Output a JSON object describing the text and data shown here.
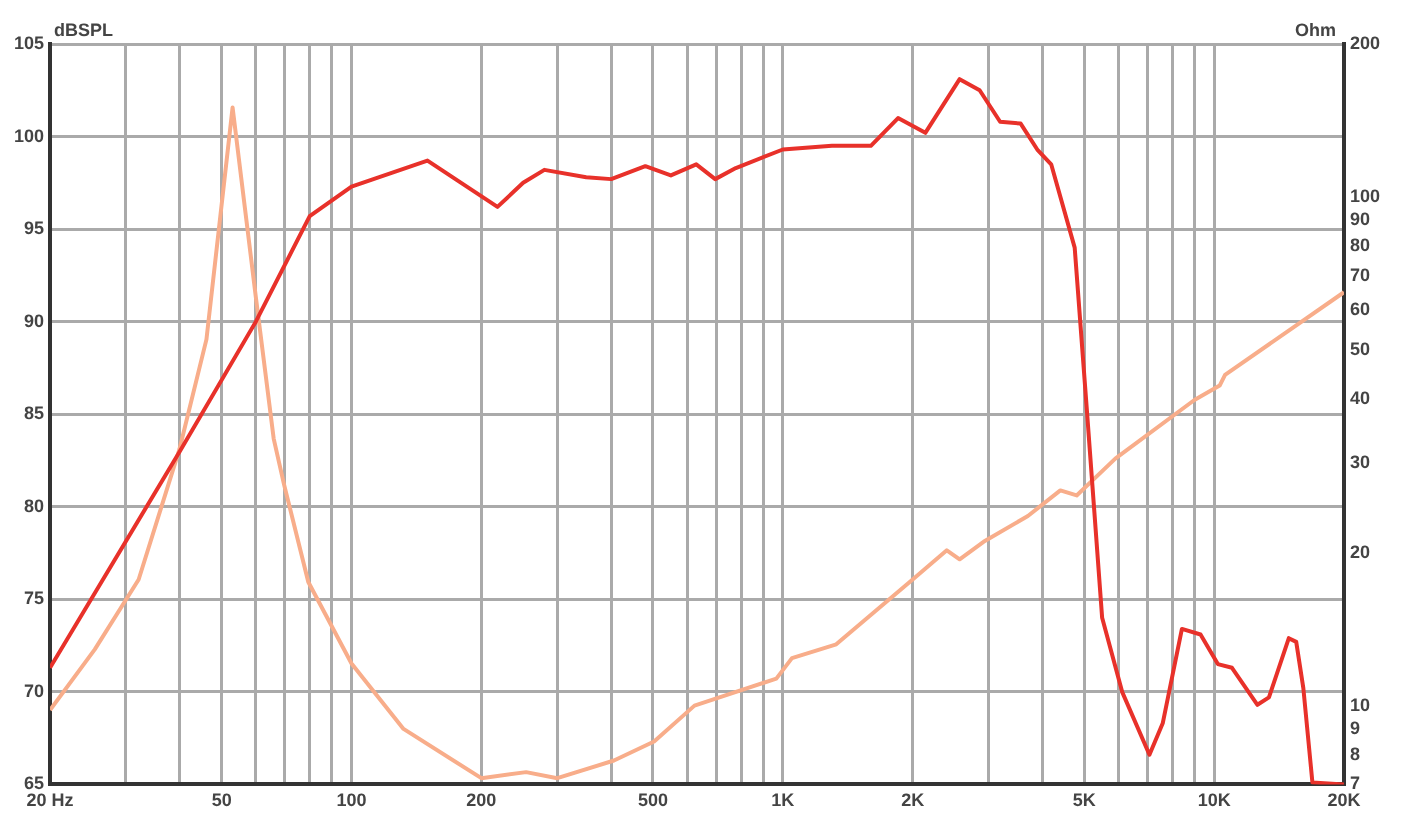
{
  "chart_data": {
    "type": "line",
    "ylabel": "Ohm",
    "y2label": "dBSPL",
    "log": "xy",
    "grid": true,
    "marker": "none",
    "line_style": "solid",
    "xlim": [
      20,
      20000
    ],
    "xticks": [
      {
        "value": 20,
        "label": "20 Hz"
      },
      {
        "value": 30,
        "label": null
      },
      {
        "value": 40,
        "label": null
      },
      50,
      {
        "value": 60,
        "label": null
      },
      {
        "value": 70,
        "label": null
      },
      {
        "value": 80,
        "label": null
      },
      {
        "value": 90,
        "label": null
      },
      100,
      200,
      {
        "value": 300,
        "label": null
      },
      {
        "value": 400,
        "label": null
      },
      500,
      {
        "value": 600,
        "label": null
      },
      {
        "value": 700,
        "label": null
      },
      {
        "value": 800,
        "label": null
      },
      {
        "value": 900,
        "label": null
      },
      {
        "value": 1000,
        "label": "1K"
      },
      {
        "value": 2000,
        "label": "2K"
      },
      {
        "value": 3000,
        "label": null
      },
      {
        "value": 4000,
        "label": null
      },
      {
        "value": 5000,
        "label": "5K"
      },
      {
        "value": 6000,
        "label": null
      },
      {
        "value": 7000,
        "label": null
      },
      {
        "value": 8000,
        "label": null
      },
      {
        "value": 9000,
        "label": null
      },
      {
        "value": 10000,
        "label": "10K"
      },
      {
        "value": 20000,
        "label": "20K"
      }
    ],
    "ylim": [
      7,
      200
    ],
    "yticks": [
      7,
      8,
      9,
      10,
      20,
      30,
      40,
      50,
      60,
      70,
      80,
      90,
      100,
      200
    ],
    "y2lim": [
      65,
      105
    ],
    "y2ticks": [
      65,
      70,
      75,
      80,
      85,
      90,
      95,
      100,
      105
    ],
    "series": [
      {
        "color": "#e8312a",
        "axis": "y2",
        "x": [
          20,
          40,
          60,
          80,
          100,
          150,
          218,
          250,
          280,
          350,
          400,
          480,
          550,
          630,
          697,
          778,
          1000,
          1300,
          1600,
          1850,
          2140,
          2570,
          2860,
          3190,
          3560,
          3890,
          4190,
          4750,
          5070,
          5500,
          6120,
          7080,
          7600,
          8420,
          9300,
          10200,
          11000,
          12600,
          13400,
          14900,
          15500,
          16100,
          16900,
          20000
        ],
        "values": [
          71.3,
          83,
          90,
          95.7,
          97.3,
          98.7,
          96.2,
          97.5,
          98.2,
          97.8,
          97.7,
          98.4,
          97.9,
          98.5,
          97.7,
          98.3,
          99.3,
          99.5,
          99.5,
          101,
          100.2,
          103.1,
          102.5,
          100.8,
          100.7,
          99.3,
          98.5,
          94,
          85.2,
          74,
          70,
          66.6,
          68.3,
          73.4,
          73.1,
          71.5,
          71.3,
          69.3,
          69.7,
          72.9,
          72.7,
          70.2,
          65.1,
          65
        ]
      },
      {
        "color": "#f8ad8a",
        "x": [
          20,
          25.4,
          32.1,
          39.9,
          46.1,
          53,
          60,
          66,
          69.7,
          79.4,
          100,
          132,
          200,
          254,
          300,
          406,
          503,
          624,
          966,
          1050,
          1330,
          2000,
          2400,
          2570,
          2920,
          3700,
          4400,
          4800,
          5900,
          9000,
          10300,
          10600,
          20000
        ],
        "values": [
          9.8,
          12.9,
          17.7,
          31.9,
          52.5,
          150,
          63.6,
          33.5,
          27.3,
          17.5,
          12.1,
          9,
          7.2,
          7.4,
          7.2,
          7.8,
          8.5,
          10,
          11.3,
          12.4,
          13.2,
          17.7,
          20.2,
          19.4,
          21,
          23.6,
          26.5,
          25.9,
          30.6,
          39.9,
          42.6,
          44.7,
          65
        ]
      }
    ]
  }
}
